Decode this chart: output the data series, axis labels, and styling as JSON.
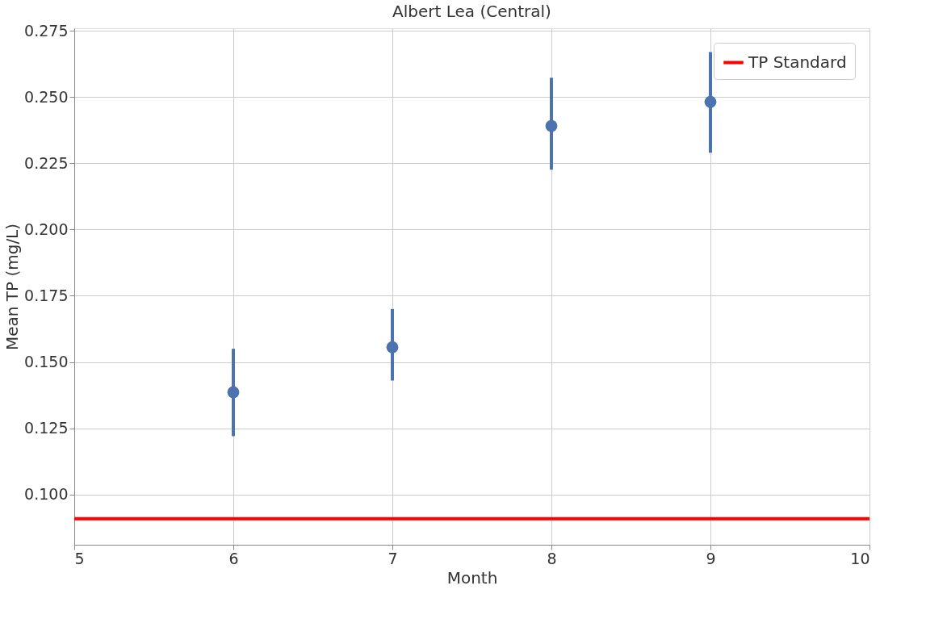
{
  "chart_data": {
    "type": "scatter",
    "title": "Albert Lea (Central)",
    "xlabel": "Month",
    "ylabel": "Mean TP (mg/L)",
    "x": [
      6,
      7,
      8,
      9
    ],
    "series": [
      {
        "color": "#4c72b0",
        "values": [
          0.1386,
          0.1556,
          0.2391,
          0.2482
        ],
        "errors": [
          [
            0.122,
            0.155
          ],
          [
            0.143,
            0.17
          ],
          [
            0.2226,
            0.2573
          ],
          [
            0.229,
            0.267
          ]
        ]
      }
    ],
    "xlim": [
      5,
      10
    ],
    "xticks": [
      5,
      6,
      7,
      8,
      9,
      10
    ],
    "ylim": [
      0.081,
      0.276
    ],
    "yticks": [
      {
        "value": 0.1,
        "label": "0.100"
      },
      {
        "value": 0.125,
        "label": "0.125"
      },
      {
        "value": 0.15,
        "label": "0.150"
      },
      {
        "value": 0.175,
        "label": "0.175"
      },
      {
        "value": 0.2,
        "label": "0.200"
      },
      {
        "value": 0.225,
        "label": "0.225"
      },
      {
        "value": 0.25,
        "label": "0.250"
      },
      {
        "value": 0.275,
        "label": "0.275"
      }
    ],
    "ref_lines": [
      {
        "axis": "y",
        "value": 0.0908,
        "label": "TP Standard",
        "color": "#ff0000"
      }
    ],
    "grid": true,
    "legend": "top right",
    "marker": "circle"
  }
}
